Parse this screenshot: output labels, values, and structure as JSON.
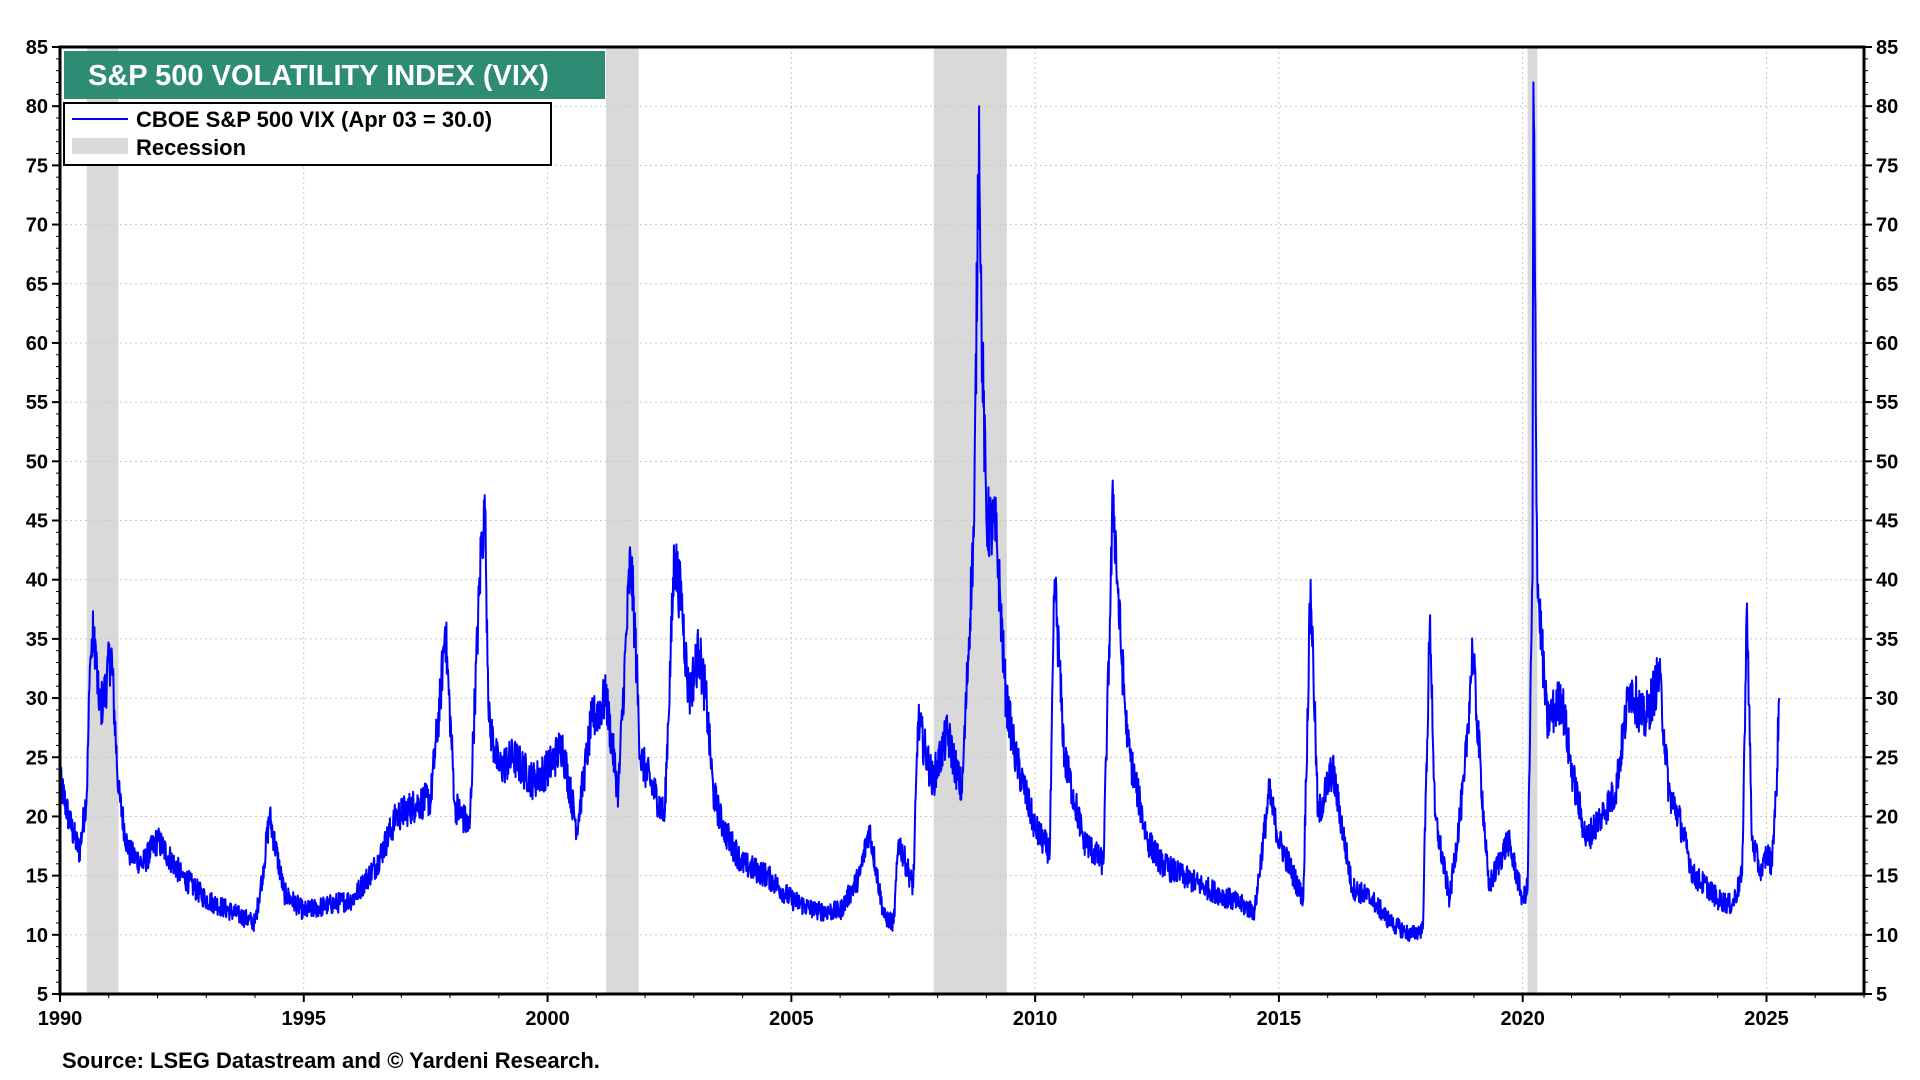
{
  "chart_data": {
    "type": "line",
    "title": "S&P 500 VOLATILITY INDEX (VIX)",
    "source": "Source: LSEG Datastream and © Yardeni Research.",
    "xlim": [
      1990,
      2027
    ],
    "ylim": [
      5,
      85
    ],
    "x_ticks": [
      1990,
      1995,
      2000,
      2005,
      2010,
      2015,
      2020,
      2025
    ],
    "y_ticks": [
      5,
      10,
      15,
      20,
      25,
      30,
      35,
      40,
      45,
      50,
      55,
      60,
      65,
      70,
      75,
      80,
      85
    ],
    "y_axis_both_sides": true,
    "grid": true,
    "legend_position": "top-left",
    "legend": [
      {
        "label": "CBOE S&P 500 VIX (Apr 03 = 30.0)",
        "kind": "line"
      },
      {
        "label": "Recession",
        "kind": "band"
      }
    ],
    "recessions": [
      [
        1990.55,
        1991.2
      ],
      [
        2001.2,
        2001.87
      ],
      [
        2007.92,
        2009.42
      ],
      [
        2020.1,
        2020.3
      ]
    ],
    "series": [
      {
        "name": "CBOE S&P 500 VIX (Apr 03 = 30.0)",
        "x": [
          1990.0,
          1990.2,
          1990.4,
          1990.55,
          1990.62,
          1990.7,
          1990.8,
          1990.9,
          1991.05,
          1991.2,
          1991.4,
          1991.7,
          1992.0,
          1992.5,
          1993.0,
          1993.5,
          1994.0,
          1994.15,
          1994.3,
          1994.6,
          1995.0,
          1995.5,
          1996.0,
          1996.5,
          1996.9,
          1997.3,
          1997.6,
          1997.8,
          1997.9,
          1998.1,
          1998.4,
          1998.65,
          1998.72,
          1998.8,
          1999.0,
          1999.3,
          1999.7,
          2000.0,
          2000.3,
          2000.6,
          2000.9,
          2001.2,
          2001.45,
          2001.7,
          2001.8,
          2001.9,
          2002.1,
          2002.4,
          2002.6,
          2002.75,
          2002.9,
          2003.1,
          2003.25,
          2003.4,
          2003.6,
          2004.0,
          2004.5,
          2005.0,
          2005.5,
          2006.0,
          2006.4,
          2006.6,
          2006.9,
          2007.1,
          2007.2,
          2007.5,
          2007.6,
          2007.9,
          2008.2,
          2008.5,
          2008.75,
          2008.85,
          2008.9,
          2009.0,
          2009.2,
          2009.4,
          2009.6,
          2010.0,
          2010.3,
          2010.4,
          2010.6,
          2011.0,
          2011.4,
          2011.6,
          2011.75,
          2011.9,
          2012.3,
          2012.6,
          2013.0,
          2013.5,
          2014.0,
          2014.5,
          2014.8,
          2015.0,
          2015.5,
          2015.65,
          2015.8,
          2016.1,
          2016.5,
          2016.9,
          2017.3,
          2017.7,
          2017.95,
          2018.1,
          2018.2,
          2018.5,
          2018.8,
          2018.97,
          2019.3,
          2019.7,
          2020.0,
          2020.1,
          2020.2,
          2020.22,
          2020.3,
          2020.5,
          2020.8,
          2021.0,
          2021.3,
          2021.6,
          2021.9,
          2022.2,
          2022.5,
          2022.8,
          2023.0,
          2023.2,
          2023.5,
          2023.8,
          2024.0,
          2024.3,
          2024.5,
          2024.6,
          2024.7,
          2024.9,
          2025.0,
          2025.1,
          2025.2,
          2025.26
        ],
        "values": [
          23.0,
          19.5,
          17.0,
          22.0,
          33.0,
          36.0,
          29.0,
          30.0,
          34.0,
          22.0,
          17.0,
          16.0,
          18.0,
          15.0,
          13.0,
          12.0,
          11.0,
          15.0,
          20.0,
          13.5,
          12.0,
          12.5,
          13.0,
          16.0,
          20.0,
          21.0,
          21.5,
          30.0,
          36.0,
          21.0,
          19.0,
          44.0,
          45.0,
          28.0,
          24.0,
          25.0,
          23.0,
          24.0,
          26.0,
          19.0,
          28.0,
          30.0,
          22.0,
          42.0,
          35.0,
          25.0,
          23.0,
          20.0,
          42.0,
          38.0,
          30.0,
          34.0,
          30.0,
          22.0,
          19.0,
          16.0,
          15.0,
          13.0,
          12.0,
          12.0,
          15.0,
          19.0,
          11.5,
          11.0,
          18.0,
          14.0,
          28.0,
          23.0,
          27.0,
          22.0,
          45.0,
          80.0,
          62.0,
          45.0,
          44.0,
          30.0,
          25.0,
          19.0,
          17.0,
          40.0,
          25.0,
          18.0,
          16.0,
          47.0,
          35.0,
          26.0,
          18.0,
          16.0,
          15.0,
          14.0,
          13.0,
          12.0,
          22.0,
          18.0,
          13.0,
          40.0,
          20.0,
          24.0,
          14.0,
          13.0,
          11.0,
          10.0,
          10.5,
          37.0,
          20.0,
          13.0,
          23.0,
          34.0,
          14.0,
          18.0,
          13.0,
          14.0,
          40.0,
          82.0,
          40.0,
          28.0,
          30.0,
          24.0,
          18.0,
          20.0,
          22.0,
          31.0,
          28.0,
          32.0,
          22.0,
          20.0,
          15.0,
          14.0,
          13.0,
          12.5,
          15.0,
          38.0,
          18.0,
          15.0,
          17.0,
          16.0,
          22.0,
          30.0
        ]
      }
    ],
    "line_color": "#0000ff",
    "recession_color": "#d9d9d9",
    "title_bg": "#2e8b74"
  }
}
